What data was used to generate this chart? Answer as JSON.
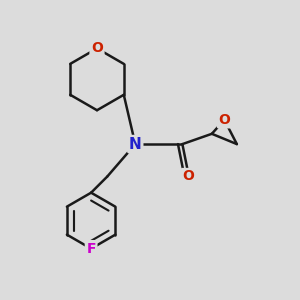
{
  "background_color": "#dcdcdc",
  "bond_color": "#1a1a1a",
  "N_color": "#2222cc",
  "O_color": "#cc2200",
  "F_color": "#cc00cc",
  "line_width": 1.8,
  "figsize": [
    3.0,
    3.0
  ],
  "dpi": 100,
  "xlim": [
    0,
    10
  ],
  "ylim": [
    0,
    10
  ]
}
